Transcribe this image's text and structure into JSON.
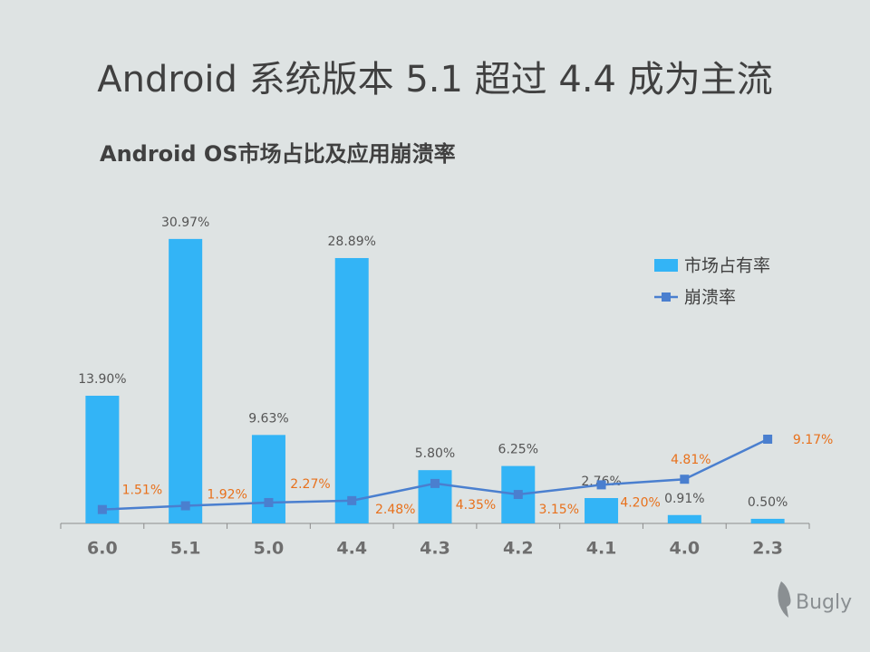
{
  "slide_title": "Android 系统版本 5.1 超过 4.4 成为主流",
  "logo": "Bugly",
  "chart_data": {
    "type": "bar",
    "title": "Android OS市场占比及应用崩溃率",
    "categories": [
      "6.0",
      "5.1",
      "5.0",
      "4.4",
      "4.3",
      "4.2",
      "4.1",
      "4.0",
      "2.3"
    ],
    "series": [
      {
        "name": "市场占有率",
        "type": "bar",
        "color": "#33b4f6",
        "values": [
          13.9,
          30.97,
          9.63,
          28.89,
          5.8,
          6.25,
          2.76,
          0.91,
          0.5
        ],
        "value_labels": [
          "13.90%",
          "30.97%",
          "9.63%",
          "28.89%",
          "5.80%",
          "6.25%",
          "2.76%",
          "0.91%",
          "0.50%"
        ],
        "label_color": "#555555"
      },
      {
        "name": "崩溃率",
        "type": "line",
        "color": "#4a7fcf",
        "values": [
          1.51,
          1.92,
          2.27,
          2.48,
          4.35,
          3.15,
          4.2,
          4.81,
          9.17
        ],
        "value_labels": [
          "1.51%",
          "1.92%",
          "2.27%",
          "2.48%",
          "4.35%",
          "3.15%",
          "4.20%",
          "4.81%",
          "9.17%"
        ],
        "label_color": "#e8711c"
      }
    ],
    "ylim": [
      0,
      35
    ],
    "legend": "top-right"
  }
}
